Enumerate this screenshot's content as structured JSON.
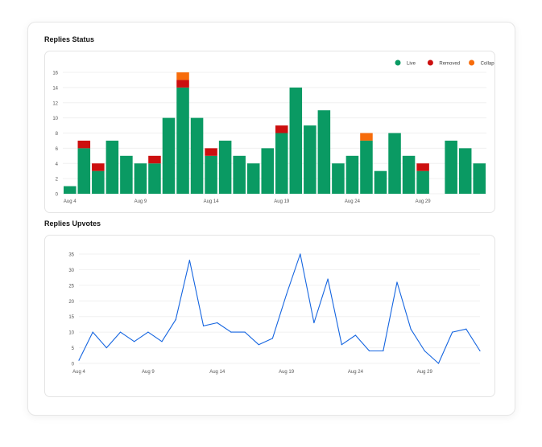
{
  "chart_data": [
    {
      "type": "bar",
      "stacked": true,
      "title": "Replies Status",
      "categories": [
        "Aug 4",
        "Aug 5",
        "Aug 6",
        "Aug 7",
        "Aug 8",
        "Aug 9",
        "Aug 10",
        "Aug 11",
        "Aug 12",
        "Aug 13",
        "Aug 14",
        "Aug 15",
        "Aug 16",
        "Aug 17",
        "Aug 18",
        "Aug 19",
        "Aug 20",
        "Aug 21",
        "Aug 22",
        "Aug 23",
        "Aug 24",
        "Aug 25",
        "Aug 26",
        "Aug 27",
        "Aug 28",
        "Aug 29",
        "Aug 30",
        "Aug 31",
        "Sep 1",
        "Sep 2"
      ],
      "series": [
        {
          "name": "Live",
          "color": "#0a9a63",
          "values": [
            1,
            6,
            3,
            7,
            5,
            4,
            4,
            10,
            14,
            10,
            5,
            7,
            5,
            4,
            6,
            8,
            14,
            9,
            11,
            4,
            5,
            7,
            3,
            8,
            5,
            3,
            0,
            7,
            6,
            4
          ]
        },
        {
          "name": "Removed",
          "color": "#cc0f0f",
          "values": [
            0,
            1,
            1,
            0,
            0,
            0,
            1,
            0,
            1,
            0,
            1,
            0,
            0,
            0,
            0,
            1,
            0,
            0,
            0,
            0,
            0,
            0,
            0,
            0,
            0,
            1,
            0,
            0,
            0,
            0
          ]
        },
        {
          "name": "Collapsed",
          "color": "#f76c0b",
          "values": [
            0,
            0,
            0,
            0,
            0,
            0,
            0,
            0,
            1,
            0,
            0,
            0,
            0,
            0,
            0,
            0,
            0,
            0,
            0,
            0,
            0,
            1,
            0,
            0,
            0,
            0,
            0,
            0,
            0,
            0
          ]
        }
      ],
      "y_ticks": [
        "0",
        "2",
        "4",
        "6",
        "8",
        "10",
        "12",
        "14",
        "16"
      ],
      "x_tick_labels": [
        "Aug 4",
        "Aug 9",
        "Aug 14",
        "Aug 19",
        "Aug 24",
        "Aug 29"
      ],
      "x_tick_indices": [
        0,
        5,
        10,
        15,
        20,
        25
      ],
      "ylim": [
        0,
        16
      ],
      "legend_position": "top-right",
      "grid": true
    },
    {
      "type": "line",
      "title": "Replies Upvotes",
      "categories": [
        "Aug 4",
        "Aug 5",
        "Aug 6",
        "Aug 7",
        "Aug 8",
        "Aug 9",
        "Aug 10",
        "Aug 11",
        "Aug 12",
        "Aug 13",
        "Aug 14",
        "Aug 15",
        "Aug 16",
        "Aug 17",
        "Aug 18",
        "Aug 19",
        "Aug 20",
        "Aug 21",
        "Aug 22",
        "Aug 23",
        "Aug 24",
        "Aug 25",
        "Aug 26",
        "Aug 27",
        "Aug 28",
        "Aug 29",
        "Aug 30",
        "Aug 31",
        "Sep 1",
        "Sep 2"
      ],
      "series": [
        {
          "name": "Upvotes",
          "color": "#1565e0",
          "values": [
            1,
            10,
            5,
            10,
            7,
            10,
            7,
            14,
            33,
            12,
            13,
            10,
            10,
            6,
            8,
            22,
            35,
            13,
            27,
            6,
            9,
            4,
            4,
            26,
            11,
            4,
            0,
            10,
            11,
            4
          ]
        }
      ],
      "y_ticks": [
        "0",
        "5",
        "10",
        "15",
        "20",
        "25",
        "30",
        "35"
      ],
      "x_tick_labels": [
        "Aug 4",
        "Aug 9",
        "Aug 14",
        "Aug 19",
        "Aug 24",
        "Aug 29"
      ],
      "x_tick_indices": [
        0,
        5,
        10,
        15,
        20,
        25
      ],
      "ylim": [
        0,
        35
      ],
      "grid": true
    }
  ]
}
